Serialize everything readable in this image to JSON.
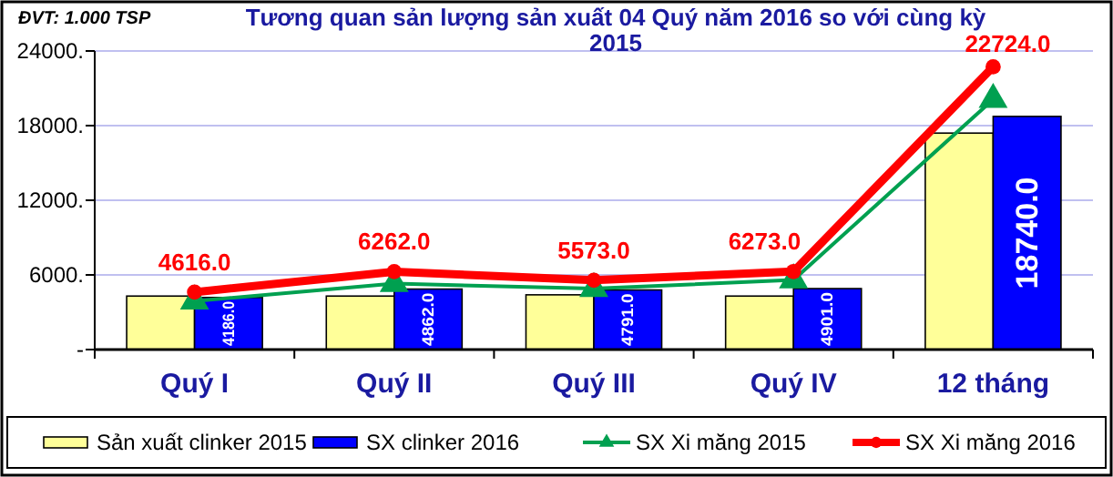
{
  "chart_data": {
    "type": "bar",
    "title": "Tương quan sản lượng sản xuất  04 Quý năm 2016 so với cùng kỳ 2015",
    "annotations": [
      "ĐVT: 1.000 TSP"
    ],
    "categories": [
      "Quý I",
      "Quý II",
      "Quý III",
      "Quý IV",
      "12 tháng"
    ],
    "series": [
      {
        "name": "Sản xuất clinker 2015",
        "color": "#ffff99",
        "values": [
          4300,
          4300,
          4400,
          4300,
          17400
        ]
      },
      {
        "name": "SX clinker 2016",
        "color": "#0000ff",
        "values": [
          4186,
          4862,
          4791,
          4901,
          18740
        ],
        "value_labels": [
          "4186.0",
          "4862.0",
          "4791.0",
          "4901.0",
          "18740.0"
        ]
      },
      {
        "name": "SX Xi măng 2015",
        "type": "line",
        "color": "#00a050",
        "marker": "triangle",
        "values": [
          3900,
          5300,
          4900,
          5600,
          20100
        ]
      },
      {
        "name": "SX Xi măng 2016",
        "type": "line",
        "color": "#ff0000",
        "marker": "circle",
        "values": [
          4616,
          6262,
          5573,
          6273,
          22724
        ],
        "value_labels": [
          "4616.0",
          "6262.0",
          "5573.0",
          "6273.0",
          "22724.0"
        ]
      }
    ],
    "ylim": [
      0,
      24000
    ],
    "yticks": [
      {
        "value": 0,
        "label": "-"
      },
      {
        "value": 6000,
        "label": "6000."
      },
      {
        "value": 12000,
        "label": "12000."
      },
      {
        "value": 18000,
        "label": "18000."
      },
      {
        "value": 24000,
        "label": "24000."
      }
    ],
    "grid": "y",
    "legend": "bottom"
  }
}
